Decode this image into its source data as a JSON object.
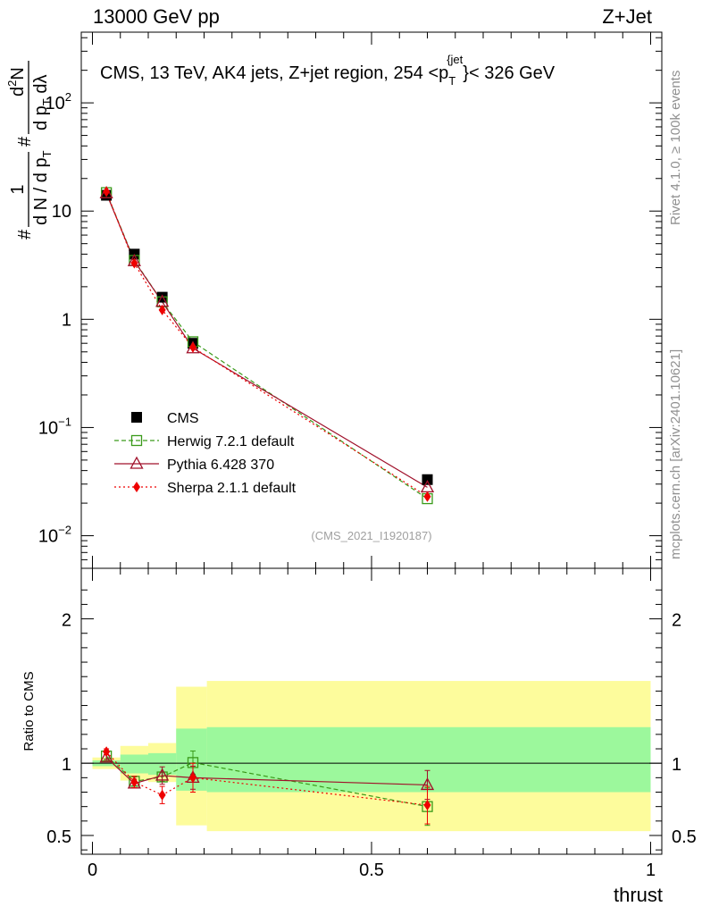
{
  "header": {
    "left_title": "13000 GeV pp",
    "right_title": "Z+Jet"
  },
  "side_labels": {
    "rivet": "Rivet 4.1.0, ≥ 100k events",
    "mcplots": "mcplots.cern.ch [arXiv:2401.10621]"
  },
  "chart_data": [
    {
      "type": "scatter",
      "panel": "main",
      "title": "CMS, 13 TeV, AK4 jets, Z+jet region, 254 <p_T^{jet}< 326 GeV",
      "title_parts": {
        "prefix": "CMS, 13 TeV, AK4 jets, Z+jet region, 254 <p",
        "sub": "T",
        "sup": "{jet",
        "suffix": "}< 326 GeV"
      },
      "ylabel_parts": {
        "hash1": "#",
        "num1": "1",
        "den1": "d N / d p",
        "den1_sub": "T",
        "hash2": "#",
        "num2": "d",
        "num2_sup": "2",
        "num2_rest": "N",
        "den2": "d p",
        "den2_sub": "T",
        "den2_rest": " dλ"
      },
      "y_scale": "log",
      "xlim": [
        -0.02,
        1.02
      ],
      "ylim": [
        0.005,
        450
      ],
      "y_tick_labels": [
        {
          "value": 0.01,
          "base": "10",
          "exp": "−2"
        },
        {
          "value": 0.1,
          "base": "10",
          "exp": "−1"
        },
        {
          "value": 1,
          "base": "1",
          "exp": ""
        },
        {
          "value": 10,
          "base": "10",
          "exp": ""
        },
        {
          "value": 100,
          "base": "10",
          "exp": "2"
        }
      ],
      "watermark": "(CMS_2021_I1920187)",
      "legend_position": "lower-left",
      "x": [
        0.025,
        0.075,
        0.125,
        0.18,
        0.6
      ],
      "series": [
        {
          "name": "CMS",
          "color": "#000000",
          "marker": "square-filled",
          "line": "none",
          "values": [
            14.0,
            4.0,
            1.6,
            0.6,
            0.033
          ]
        },
        {
          "name": "Herwig 7.2.1 default",
          "color": "#3a9a1a",
          "marker": "square-open",
          "line": "dashed",
          "values": [
            14.8,
            3.5,
            1.45,
            0.62,
            0.022
          ]
        },
        {
          "name": "Pythia 6.428 370",
          "color": "#a0102a",
          "marker": "triangle-open",
          "line": "solid",
          "values": [
            14.6,
            3.45,
            1.45,
            0.54,
            0.028
          ]
        },
        {
          "name": "Sherpa 2.1.1 default",
          "color": "#ee0000",
          "marker": "diamond-filled",
          "line": "dotted",
          "values": [
            15.1,
            3.3,
            1.22,
            0.55,
            0.023
          ]
        }
      ]
    },
    {
      "type": "scatter",
      "panel": "ratio",
      "ylabel": "Ratio to CMS",
      "xlabel": "thrust",
      "xlim": [
        -0.02,
        1.02
      ],
      "ylim": [
        0.37,
        2.35
      ],
      "x_ticks": [
        {
          "value": 0,
          "label": "0"
        },
        {
          "value": 0.5,
          "label": "0.5"
        },
        {
          "value": 1,
          "label": "1"
        }
      ],
      "y_ticks": [
        {
          "value": 0.5,
          "label": "0.5"
        },
        {
          "value": 1,
          "label": "1"
        },
        {
          "value": 2,
          "label": "2"
        }
      ],
      "bands": {
        "bin_edges": [
          0.0,
          0.05,
          0.1,
          0.15,
          0.205,
          1.0
        ],
        "yellow": [
          [
            0.96,
            1.04
          ],
          [
            0.88,
            1.12
          ],
          [
            0.87,
            1.14
          ],
          [
            0.57,
            1.53
          ],
          [
            0.53,
            1.57
          ]
        ],
        "green": [
          [
            0.98,
            1.02
          ],
          [
            0.93,
            1.06
          ],
          [
            0.92,
            1.07
          ],
          [
            0.81,
            1.24
          ],
          [
            0.8,
            1.25
          ]
        ]
      },
      "x": [
        0.025,
        0.075,
        0.125,
        0.18,
        0.6
      ],
      "series": [
        {
          "name": "Herwig 7.2.1 default",
          "color": "#3a9a1a",
          "marker": "square-open",
          "line": "dashed",
          "values": [
            1.05,
            0.875,
            0.905,
            1.005,
            0.7
          ],
          "errors": [
            0.02,
            0.03,
            0.03,
            0.08,
            0.13
          ]
        },
        {
          "name": "Pythia 6.428 370",
          "color": "#a0102a",
          "marker": "triangle-open",
          "line": "solid",
          "values": [
            1.04,
            0.86,
            0.915,
            0.9,
            0.85
          ],
          "errors": [
            0.02,
            0.03,
            0.06,
            0.08,
            0.1
          ]
        },
        {
          "name": "Sherpa 2.1.1 default",
          "color": "#ee0000",
          "marker": "diamond-filled",
          "line": "dotted",
          "values": [
            1.08,
            0.87,
            0.78,
            0.9,
            0.71
          ],
          "errors": [
            0.02,
            0.04,
            0.06,
            0.1,
            0.13
          ]
        }
      ]
    }
  ]
}
